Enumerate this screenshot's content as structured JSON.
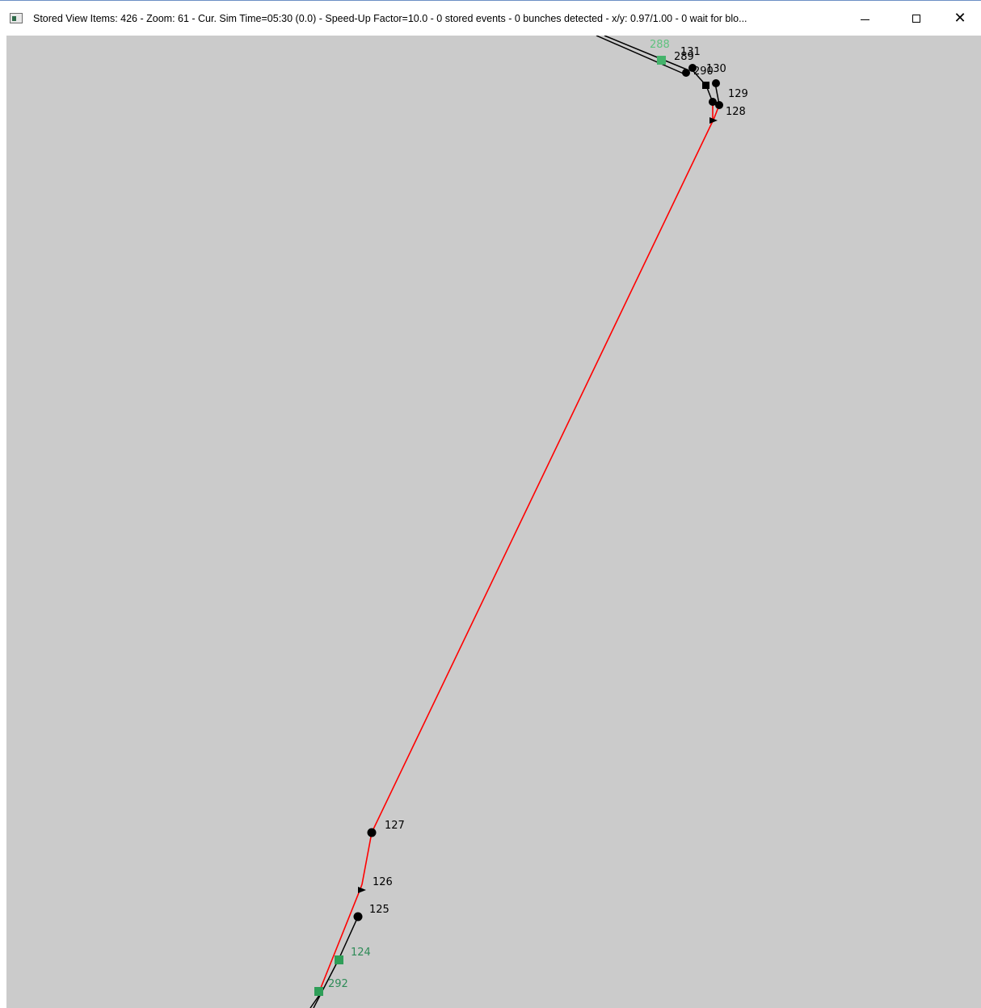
{
  "window": {
    "title": "Stored View Items: 426 - Zoom: 61 - Cur. Sim Time=05:30 (0.0) - Speed-Up Factor=10.0 - 0 stored events - 0 bunches detected - x/y: 0.97/1.00 - 0 wait for blo...",
    "icon": "app-window-icon",
    "controls": {
      "minimize": "minimize-icon",
      "maximize": "maximize-icon",
      "close": "close-icon"
    },
    "close_glyph": "✕"
  },
  "map": {
    "background": "#cbcbcb",
    "stops": [
      {
        "id": "131",
        "label": "131"
      },
      {
        "id": "130",
        "label": "130"
      },
      {
        "id": "129",
        "label": "129"
      },
      {
        "id": "128",
        "label": "128"
      },
      {
        "id": "127",
        "label": "127"
      },
      {
        "id": "126",
        "label": "126"
      },
      {
        "id": "125",
        "label": "125"
      }
    ],
    "stations": [
      {
        "id": "288",
        "label": "288"
      },
      {
        "id": "289",
        "label": "289"
      },
      {
        "id": "290",
        "label": "290"
      },
      {
        "id": "124",
        "label": "124"
      },
      {
        "id": "292",
        "label": "292"
      }
    ],
    "colors": {
      "active_route": "#ff0000",
      "track": "#000000",
      "stop": "#000000",
      "station": "#2e9e58",
      "station_label_light": "#5fc27f",
      "station_label": "#2e8b57"
    }
  }
}
